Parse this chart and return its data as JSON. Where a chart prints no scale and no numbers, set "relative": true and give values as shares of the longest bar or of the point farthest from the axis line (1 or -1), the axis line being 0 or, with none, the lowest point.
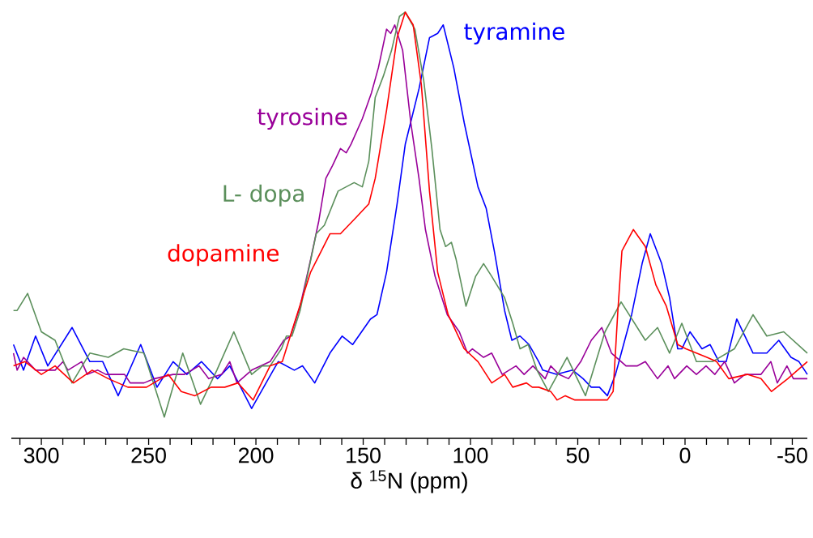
{
  "chart_data": {
    "type": "line",
    "xlabel": "δ $^{15}$N (ppm)",
    "relative": true,
    "xlim": [
      314,
      -57
    ],
    "xticks": [
      {
        "value": 310,
        "label": null
      },
      300,
      {
        "value": 290,
        "label": null
      },
      {
        "value": 280,
        "label": null
      },
      {
        "value": 270,
        "label": null
      },
      {
        "value": 260,
        "label": null
      },
      250,
      {
        "value": 240,
        "label": null
      },
      {
        "value": 230,
        "label": null
      },
      {
        "value": 220,
        "label": null
      },
      {
        "value": 210,
        "label": null
      },
      200,
      {
        "value": 190,
        "label": null
      },
      {
        "value": 180,
        "label": null
      },
      {
        "value": 170,
        "label": null
      },
      {
        "value": 160,
        "label": null
      },
      150,
      {
        "value": 140,
        "label": null
      },
      {
        "value": 130,
        "label": null
      },
      {
        "value": 120,
        "label": null
      },
      {
        "value": 110,
        "label": null
      },
      100,
      {
        "value": 90,
        "label": null
      },
      {
        "value": 80,
        "label": null
      },
      {
        "value": 70,
        "label": null
      },
      {
        "value": 60,
        "label": null
      },
      50,
      {
        "value": 40,
        "label": null
      },
      {
        "value": 30,
        "label": null
      },
      {
        "value": 20,
        "label": null
      },
      {
        "value": 10,
        "label": null
      },
      0,
      {
        "value": -10,
        "label": null
      },
      {
        "value": -20,
        "label": null
      },
      {
        "value": -30,
        "label": null
      },
      {
        "value": -40,
        "label": null
      },
      -50
    ],
    "series": [
      {
        "name": "tyramine",
        "color": "#0000ff",
        "x": [
          313,
          308.3,
          302.7,
          297.0,
          285.7,
          277.4,
          271.4,
          264.2,
          253.7,
          246.1,
          238.6,
          232.2,
          225.4,
          217.9,
          212.2,
          202.0,
          191.9,
          189.6,
          182.1,
          178.3,
          172.6,
          165.5,
          159.8,
          154.9,
          146.6,
          143.6,
          139.1,
          134.2,
          130.4,
          124.0,
          119.1,
          115.3,
          112.7,
          107.8,
          102.9,
          96.5,
          92.7,
          88.9,
          84.1,
          80.7,
          76.9,
          72.7,
          68.2,
          66.3,
          59.9,
          52.4,
          47.5,
          43.7,
          39.9,
          36.2,
          32.4,
          24.9,
          20.0,
          16.2,
          10.9,
          7.2,
          3.4,
          1.5,
          -2.3,
          -7.9,
          -11.7,
          -15.8,
          -19.2,
          -24.1,
          -31.7,
          -38.1,
          -43.7,
          -49.4,
          -53.1,
          -57
        ],
        "values": [
          0.22,
          0.16,
          0.24,
          0.17,
          0.26,
          0.18,
          0.18,
          0.1,
          0.22,
          0.12,
          0.18,
          0.15,
          0.18,
          0.14,
          0.17,
          0.07,
          0.16,
          0.18,
          0.16,
          0.17,
          0.13,
          0.2,
          0.24,
          0.22,
          0.28,
          0.29,
          0.39,
          0.55,
          0.69,
          0.82,
          0.94,
          0.95,
          0.97,
          0.87,
          0.74,
          0.59,
          0.54,
          0.44,
          0.3,
          0.23,
          0.24,
          0.22,
          0.18,
          0.16,
          0.15,
          0.16,
          0.14,
          0.12,
          0.12,
          0.1,
          0.15,
          0.29,
          0.41,
          0.48,
          0.41,
          0.33,
          0.21,
          0.21,
          0.25,
          0.21,
          0.22,
          0.18,
          0.18,
          0.28,
          0.2,
          0.2,
          0.23,
          0.19,
          0.18,
          0.15
        ]
      },
      {
        "name": "tyrosine",
        "color": "#990099",
        "x": [
          313,
          311.3,
          308.3,
          302.7,
          298.9,
          293.6,
          289.9,
          287.6,
          281.2,
          278.6,
          273.7,
          269.9,
          261.2,
          258.6,
          252.2,
          247.3,
          238.6,
          233.3,
          226.5,
          222.0,
          216.0,
          212.2,
          208.8,
          202.0,
          193.4,
          187.0,
          183.9,
          179.4,
          174.5,
          170.7,
          167.4,
          164.3,
          160.6,
          157.9,
          155.7,
          150.4,
          146.2,
          142.9,
          139.1,
          137.2,
          135.3,
          131.6,
          127.8,
          124.0,
          121.0,
          116.5,
          110.8,
          105.2,
          101.4,
          99.1,
          93.9,
          90.1,
          85.2,
          78.8,
          75.0,
          70.9,
          65.2,
          62.6,
          58.8,
          54.3,
          48.6,
          43.7,
          38.8,
          34.3,
          27.5,
          22.2,
          18.5,
          12.8,
          7.9,
          4.9,
          -0.8,
          -5.3,
          -9.8,
          -13.9,
          -18.5,
          -23.0,
          -27.9,
          -35.4,
          -40.0,
          -43.0,
          -47.5,
          -50.5,
          -57
        ],
        "values": [
          0.2,
          0.16,
          0.19,
          0.16,
          0.16,
          0.16,
          0.18,
          0.16,
          0.18,
          0.15,
          0.16,
          0.15,
          0.15,
          0.13,
          0.13,
          0.14,
          0.15,
          0.15,
          0.17,
          0.14,
          0.15,
          0.18,
          0.13,
          0.16,
          0.18,
          0.23,
          0.24,
          0.31,
          0.42,
          0.51,
          0.61,
          0.64,
          0.68,
          0.67,
          0.69,
          0.75,
          0.81,
          0.87,
          0.96,
          0.95,
          0.97,
          0.91,
          0.74,
          0.61,
          0.49,
          0.38,
          0.29,
          0.25,
          0.2,
          0.21,
          0.19,
          0.2,
          0.15,
          0.17,
          0.15,
          0.17,
          0.14,
          0.17,
          0.15,
          0.14,
          0.18,
          0.23,
          0.26,
          0.2,
          0.17,
          0.17,
          0.18,
          0.14,
          0.17,
          0.14,
          0.17,
          0.15,
          0.17,
          0.15,
          0.18,
          0.13,
          0.15,
          0.15,
          0.18,
          0.13,
          0.17,
          0.14,
          0.14
        ]
      },
      {
        "name": "L- dopa",
        "color": "#5b8f5b",
        "x": [
          313,
          311.3,
          306.4,
          300.0,
          293.6,
          285.7,
          277.4,
          268.8,
          261.6,
          252.2,
          242.7,
          234.1,
          225.8,
          218.2,
          210.3,
          202.0,
          197.1,
          193.4,
          188.1,
          185.8,
          183.2,
          179.4,
          171.9,
          168.1,
          161.7,
          154.2,
          150.4,
          147.4,
          144.4,
          140.6,
          136.8,
          133.1,
          130.4,
          125.9,
          121.8,
          118.0,
          114.2,
          111.6,
          108.9,
          106.7,
          102.1,
          97.6,
          93.9,
          90.1,
          84.1,
          80.3,
          76.9,
          73.1,
          69.0,
          63.7,
          55.0,
          46.4,
          37.3,
          29.8,
          18.5,
          12.8,
          7.2,
          1.5,
          -5.3,
          -12.8,
          -23.0,
          -31.7,
          -38.1,
          -46.0,
          -57
        ],
        "values": [
          0.3,
          0.3,
          0.34,
          0.25,
          0.23,
          0.13,
          0.2,
          0.19,
          0.21,
          0.2,
          0.05,
          0.2,
          0.08,
          0.16,
          0.25,
          0.15,
          0.17,
          0.17,
          0.21,
          0.24,
          0.24,
          0.3,
          0.48,
          0.5,
          0.58,
          0.6,
          0.59,
          0.65,
          0.8,
          0.85,
          0.91,
          0.99,
          1.0,
          0.96,
          0.84,
          0.68,
          0.49,
          0.45,
          0.46,
          0.42,
          0.31,
          0.38,
          0.41,
          0.38,
          0.33,
          0.27,
          0.21,
          0.22,
          0.16,
          0.11,
          0.19,
          0.1,
          0.25,
          0.32,
          0.23,
          0.26,
          0.2,
          0.27,
          0.18,
          0.18,
          0.21,
          0.29,
          0.24,
          0.25,
          0.2
        ]
      },
      {
        "name": "dopamine",
        "color": "#ff0000",
        "x": [
          313,
          307.6,
          300.0,
          293.6,
          285.0,
          276.3,
          268.8,
          259.7,
          251.0,
          240.9,
          234.8,
          228.4,
          220.9,
          214.5,
          208.4,
          201.3,
          193.4,
          187.7,
          182.1,
          174.5,
          165.5,
          160.6,
          153.0,
          147.4,
          144.4,
          139.1,
          134.2,
          130.4,
          126.7,
          122.9,
          119.1,
          115.3,
          110.4,
          102.9,
          96.5,
          90.1,
          84.1,
          80.3,
          73.9,
          71.2,
          68.2,
          62.6,
          59.6,
          55.8,
          51.3,
          36.2,
          33.5,
          31.3,
          29.4,
          24.1,
          18.5,
          13.6,
          8.7,
          3.4,
          -0.4,
          -5.3,
          -10.2,
          -14.7,
          -20.4,
          -29.0,
          -35.4,
          -40.3,
          -47.9,
          -57
        ],
        "values": [
          0.17,
          0.18,
          0.15,
          0.17,
          0.13,
          0.16,
          0.14,
          0.12,
          0.12,
          0.15,
          0.11,
          0.1,
          0.12,
          0.12,
          0.13,
          0.09,
          0.17,
          0.18,
          0.27,
          0.39,
          0.48,
          0.48,
          0.52,
          0.55,
          0.61,
          0.77,
          0.94,
          1.0,
          0.97,
          0.83,
          0.58,
          0.39,
          0.29,
          0.21,
          0.18,
          0.13,
          0.15,
          0.12,
          0.13,
          0.12,
          0.12,
          0.11,
          0.09,
          0.1,
          0.09,
          0.09,
          0.11,
          0.3,
          0.44,
          0.49,
          0.45,
          0.36,
          0.31,
          0.22,
          0.21,
          0.2,
          0.19,
          0.18,
          0.14,
          0.15,
          0.14,
          0.11,
          0.14,
          0.18
        ]
      }
    ]
  }
}
